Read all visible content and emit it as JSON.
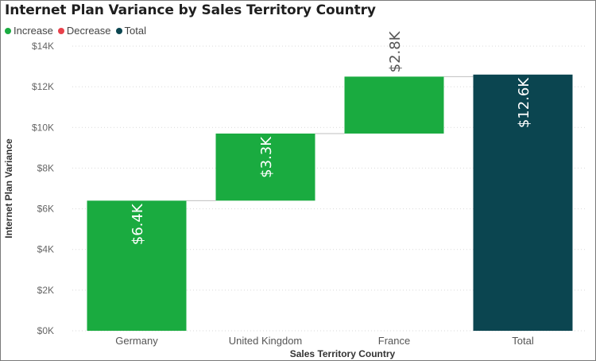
{
  "chart_data": {
    "type": "waterfall",
    "title": "Internet Plan Variance by Sales Territory Country",
    "xlabel": "Sales Territory Country",
    "ylabel": "Internet Plan Variance",
    "legend": [
      {
        "name": "Increase",
        "color": "#1aab40"
      },
      {
        "name": "Decrease",
        "color": "#e8414b"
      },
      {
        "name": "Total",
        "color": "#0b4550"
      }
    ],
    "legend_position": "top-left",
    "categories": [
      "Germany",
      "United Kingdom",
      "France",
      "Total"
    ],
    "values": [
      6.4,
      3.3,
      2.8,
      12.6
    ],
    "value_units": "$K",
    "data_labels": [
      "$6.4K",
      "$3.3K",
      "$2.8K",
      "$12.6K"
    ],
    "kinds": [
      "increase",
      "increase",
      "increase",
      "total"
    ],
    "ylim": [
      0,
      14
    ],
    "yticks": [
      0,
      2,
      4,
      6,
      8,
      10,
      12,
      14
    ],
    "ytick_labels": [
      "$0K",
      "$2K",
      "$4K",
      "$6K",
      "$8K",
      "$10K",
      "$12K",
      "$14K"
    ],
    "grid": true,
    "colors": {
      "increase": "#1aab40",
      "decrease": "#e8414b",
      "total": "#0b4550"
    }
  }
}
